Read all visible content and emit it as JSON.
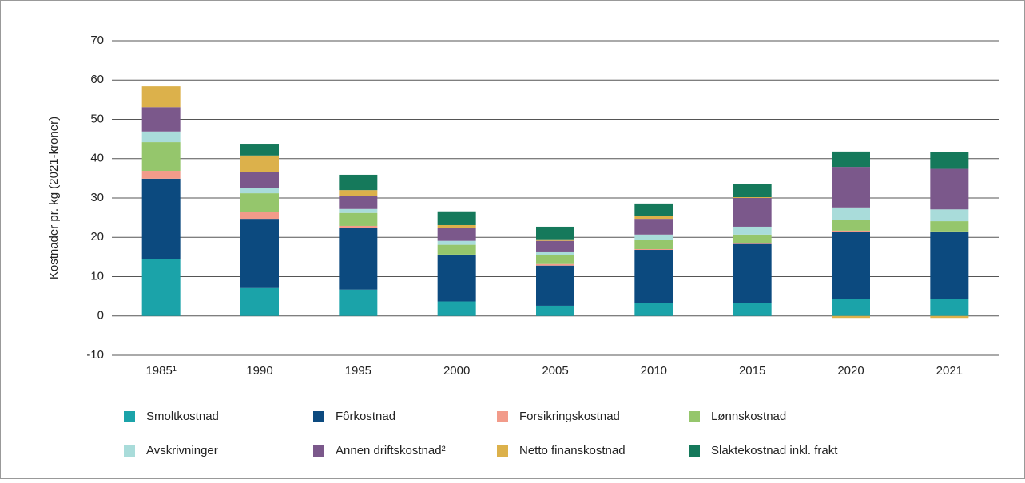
{
  "chart_data": {
    "type": "stacked_bar",
    "y_label": "Kostnader pr. kg (2021-kroner)",
    "categories": [
      "1985¹",
      "1990",
      "1995",
      "2000",
      "2005",
      "2010",
      "2015",
      "2020",
      "2021"
    ],
    "series": [
      {
        "name": "Smoltkostnad",
        "color": "#1ba3a9",
        "values": [
          14.4,
          7.1,
          6.7,
          3.7,
          2.6,
          3.2,
          3.2,
          4.3,
          4.3
        ]
      },
      {
        "name": "Fôrkostnad",
        "color": "#0c4a7f",
        "values": [
          20.5,
          17.6,
          15.6,
          11.7,
          10.2,
          13.6,
          15.1,
          17.0,
          17.0
        ]
      },
      {
        "name": "Forsikringskostnad",
        "color": "#f29b8a",
        "values": [
          2.0,
          1.7,
          0.6,
          0.2,
          0.4,
          0.2,
          0.2,
          0.4,
          0.2
        ]
      },
      {
        "name": "Lønnskostnad",
        "color": "#95c66c",
        "values": [
          7.3,
          4.8,
          3.3,
          2.5,
          2.2,
          2.3,
          2.2,
          2.8,
          2.6
        ]
      },
      {
        "name": "Avskrivninger",
        "color": "#a9dcda",
        "values": [
          2.7,
          1.3,
          1.0,
          1.0,
          0.8,
          1.4,
          2.0,
          3.1,
          3.0
        ]
      },
      {
        "name": "Annen driftskostnad²",
        "color": "#7b588b",
        "values": [
          6.2,
          4.0,
          3.4,
          3.2,
          2.9,
          4.0,
          7.3,
          10.3,
          10.3
        ]
      },
      {
        "name": "Netto finanskostnad",
        "color": "#dcb14b",
        "values": [
          5.3,
          4.3,
          1.4,
          0.8,
          0.4,
          0.7,
          0.2,
          -0.5,
          -0.5
        ]
      },
      {
        "name": "Slaktekostnad inkl. frakt",
        "color": "#15795b",
        "values": [
          0,
          3.0,
          3.9,
          3.5,
          3.2,
          3.2,
          3.3,
          3.9,
          4.3
        ]
      }
    ],
    "ylim": [
      -10,
      70
    ],
    "yticks": [
      -10,
      0,
      10,
      20,
      30,
      40,
      50,
      60,
      70
    ],
    "grid": true
  }
}
